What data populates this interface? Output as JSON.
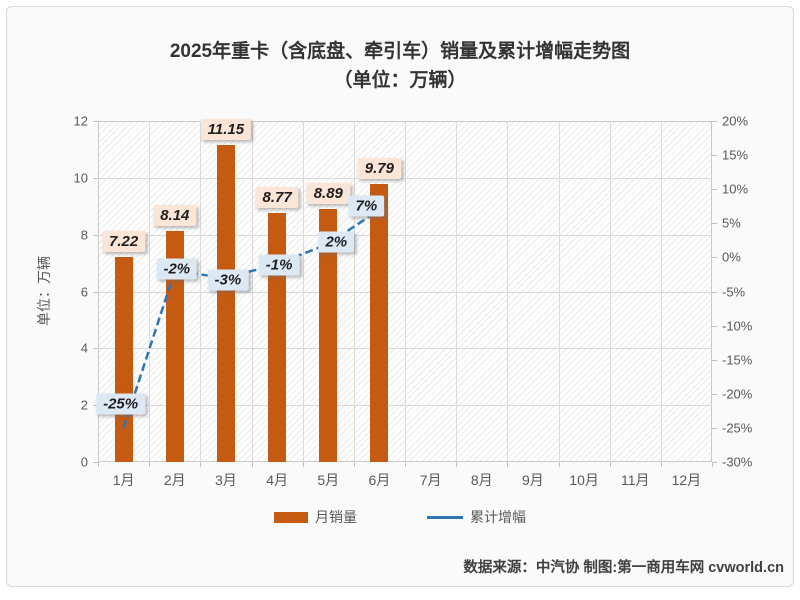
{
  "title": {
    "line1": "2025年重卡（含底盘、牵引车）销量及累计增幅走势图",
    "line2": "（单位：万辆）"
  },
  "chart_data": {
    "type": "combo-bar-line",
    "categories": [
      "1月",
      "2月",
      "3月",
      "4月",
      "5月",
      "6月",
      "7月",
      "8月",
      "9月",
      "10月",
      "11月",
      "12月"
    ],
    "series": [
      {
        "name": "月销量",
        "type": "bar",
        "axis": "left",
        "color": "#C55A11",
        "values": [
          7.22,
          8.14,
          11.15,
          8.77,
          8.89,
          9.79
        ],
        "labels": [
          "7.22",
          "8.14",
          "11.15",
          "8.77",
          "8.89",
          "9.79"
        ]
      },
      {
        "name": "累计增幅",
        "type": "line",
        "axis": "right",
        "color": "#2E75B6",
        "values": [
          -25,
          -2,
          -3,
          -1,
          2,
          7
        ],
        "labels": [
          "-25%",
          "-2%",
          "-3%",
          "-1%",
          "2%",
          "7%"
        ]
      }
    ],
    "left_axis": {
      "title": "单位：万辆",
      "min": 0,
      "max": 12,
      "ticks": [
        "0",
        "2",
        "4",
        "6",
        "8",
        "10",
        "12"
      ]
    },
    "right_axis": {
      "min": -30,
      "max": 20,
      "ticks": [
        "20%",
        "15%",
        "10%",
        "5%",
        "0%",
        "-5%",
        "-10%",
        "-15%",
        "-20%",
        "-25%",
        "-30%"
      ]
    },
    "grid": true,
    "legend_position": "bottom"
  },
  "footer": {
    "credit": "数据来源：中汽协  制图:第一商用车网 cvworld.cn"
  },
  "colors": {
    "bar": "#C55A11",
    "line": "#2E75B6",
    "bar_label_bg": "#FBE5D6",
    "line_label_bg": "#DCE9F5"
  }
}
